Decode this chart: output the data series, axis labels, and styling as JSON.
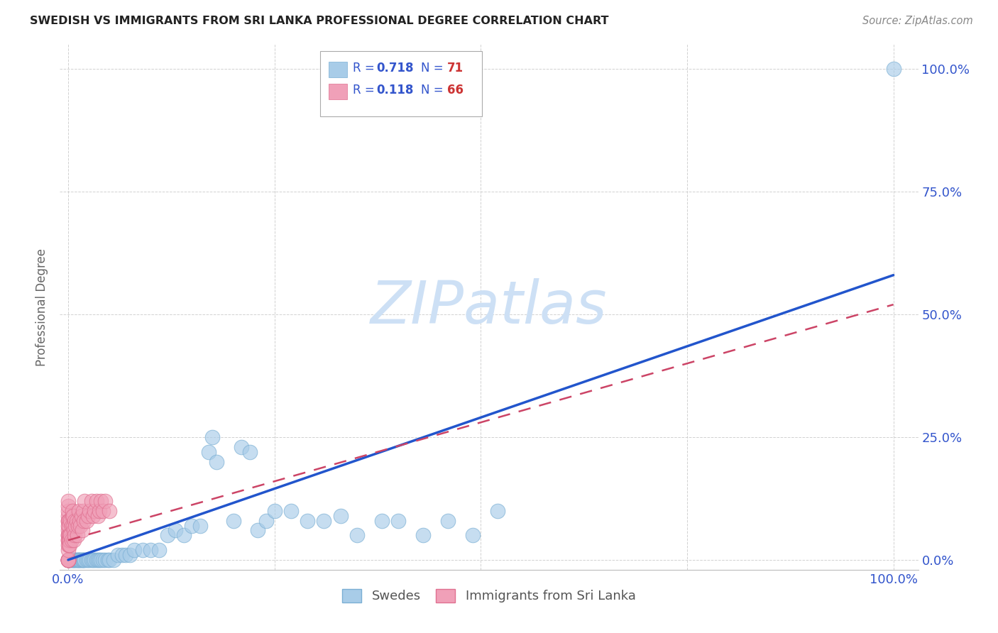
{
  "title": "SWEDISH VS IMMIGRANTS FROM SRI LANKA PROFESSIONAL DEGREE CORRELATION CHART",
  "source": "Source: ZipAtlas.com",
  "ylabel": "Professional Degree",
  "x_tick_labels": [
    "0.0%",
    "",
    "",
    "",
    "100.0%"
  ],
  "y_tick_labels": [
    "",
    "",
    "",
    "",
    ""
  ],
  "right_y_tick_labels": [
    "0.0%",
    "25.0%",
    "50.0%",
    "75.0%",
    "100.0%"
  ],
  "x_ticks": [
    0.0,
    0.25,
    0.5,
    0.75,
    1.0
  ],
  "y_ticks": [
    0.0,
    0.25,
    0.5,
    0.75,
    1.0
  ],
  "blue_color": "#a8cce8",
  "blue_edge_color": "#7bafd4",
  "pink_color": "#f0a0b8",
  "pink_edge_color": "#e07090",
  "blue_line_color": "#2255cc",
  "pink_line_color": "#cc4466",
  "grid_color": "#cccccc",
  "background_color": "#ffffff",
  "watermark_color": "#cde0f5",
  "title_color": "#222222",
  "source_color": "#888888",
  "tick_label_color": "#3355cc",
  "ylabel_color": "#666666",
  "legend_text_color": "#3355cc",
  "legend_N_color": "#cc3333",
  "blue_scatter_x": [
    0.0,
    0.0,
    0.001,
    0.002,
    0.003,
    0.004,
    0.005,
    0.006,
    0.007,
    0.008,
    0.009,
    0.01,
    0.011,
    0.012,
    0.013,
    0.014,
    0.015,
    0.016,
    0.017,
    0.018,
    0.019,
    0.02,
    0.022,
    0.024,
    0.026,
    0.028,
    0.03,
    0.032,
    0.034,
    0.036,
    0.038,
    0.04,
    0.042,
    0.045,
    0.048,
    0.05,
    0.055,
    0.06,
    0.065,
    0.07,
    0.075,
    0.08,
    0.09,
    0.1,
    0.11,
    0.12,
    0.13,
    0.14,
    0.15,
    0.16,
    0.17,
    0.175,
    0.18,
    0.2,
    0.21,
    0.22,
    0.23,
    0.24,
    0.25,
    0.27,
    0.29,
    0.31,
    0.33,
    0.35,
    0.38,
    0.4,
    0.43,
    0.46,
    0.49,
    0.52,
    1.0
  ],
  "blue_scatter_y": [
    0.0,
    0.0,
    0.0,
    0.0,
    0.0,
    0.0,
    0.0,
    0.0,
    0.0,
    0.0,
    0.0,
    0.0,
    0.0,
    0.0,
    0.0,
    0.0,
    0.0,
    0.0,
    0.0,
    0.0,
    0.0,
    0.0,
    0.0,
    0.0,
    0.0,
    0.0,
    0.0,
    0.0,
    0.0,
    0.0,
    0.0,
    0.0,
    0.0,
    0.0,
    0.0,
    0.0,
    0.0,
    0.01,
    0.01,
    0.01,
    0.01,
    0.02,
    0.02,
    0.02,
    0.02,
    0.05,
    0.06,
    0.05,
    0.07,
    0.07,
    0.22,
    0.25,
    0.2,
    0.08,
    0.23,
    0.22,
    0.06,
    0.08,
    0.1,
    0.1,
    0.08,
    0.08,
    0.09,
    0.05,
    0.08,
    0.08,
    0.05,
    0.08,
    0.05,
    0.1,
    1.0
  ],
  "pink_scatter_x": [
    0.0,
    0.0,
    0.0,
    0.0,
    0.0,
    0.0,
    0.0,
    0.0,
    0.0,
    0.0,
    0.0,
    0.0,
    0.0,
    0.0,
    0.0,
    0.0,
    0.0,
    0.0,
    0.0,
    0.0,
    0.0,
    0.001,
    0.001,
    0.001,
    0.001,
    0.001,
    0.002,
    0.002,
    0.002,
    0.003,
    0.003,
    0.004,
    0.004,
    0.005,
    0.005,
    0.006,
    0.006,
    0.007,
    0.007,
    0.008,
    0.008,
    0.009,
    0.01,
    0.011,
    0.012,
    0.013,
    0.014,
    0.015,
    0.016,
    0.017,
    0.018,
    0.019,
    0.02,
    0.022,
    0.024,
    0.026,
    0.028,
    0.03,
    0.032,
    0.034,
    0.036,
    0.038,
    0.04,
    0.042,
    0.045,
    0.05
  ],
  "pink_scatter_y": [
    0.0,
    0.0,
    0.0,
    0.0,
    0.0,
    0.0,
    0.0,
    0.02,
    0.03,
    0.04,
    0.05,
    0.06,
    0.07,
    0.08,
    0.09,
    0.1,
    0.11,
    0.12,
    0.08,
    0.05,
    0.04,
    0.03,
    0.05,
    0.08,
    0.04,
    0.07,
    0.05,
    0.04,
    0.03,
    0.05,
    0.08,
    0.04,
    0.07,
    0.09,
    0.1,
    0.07,
    0.09,
    0.06,
    0.04,
    0.08,
    0.05,
    0.07,
    0.08,
    0.05,
    0.07,
    0.1,
    0.08,
    0.07,
    0.09,
    0.06,
    0.1,
    0.08,
    0.12,
    0.08,
    0.09,
    0.1,
    0.12,
    0.09,
    0.1,
    0.12,
    0.09,
    0.1,
    0.12,
    0.1,
    0.12,
    0.1
  ],
  "blue_line_x": [
    0.0,
    1.0
  ],
  "blue_line_y": [
    0.0,
    0.58
  ],
  "pink_line_x": [
    0.0,
    1.0
  ],
  "pink_line_y": [
    0.04,
    0.52
  ],
  "R_blue": "0.718",
  "N_blue": "71",
  "R_pink": "0.118",
  "N_pink": "66"
}
